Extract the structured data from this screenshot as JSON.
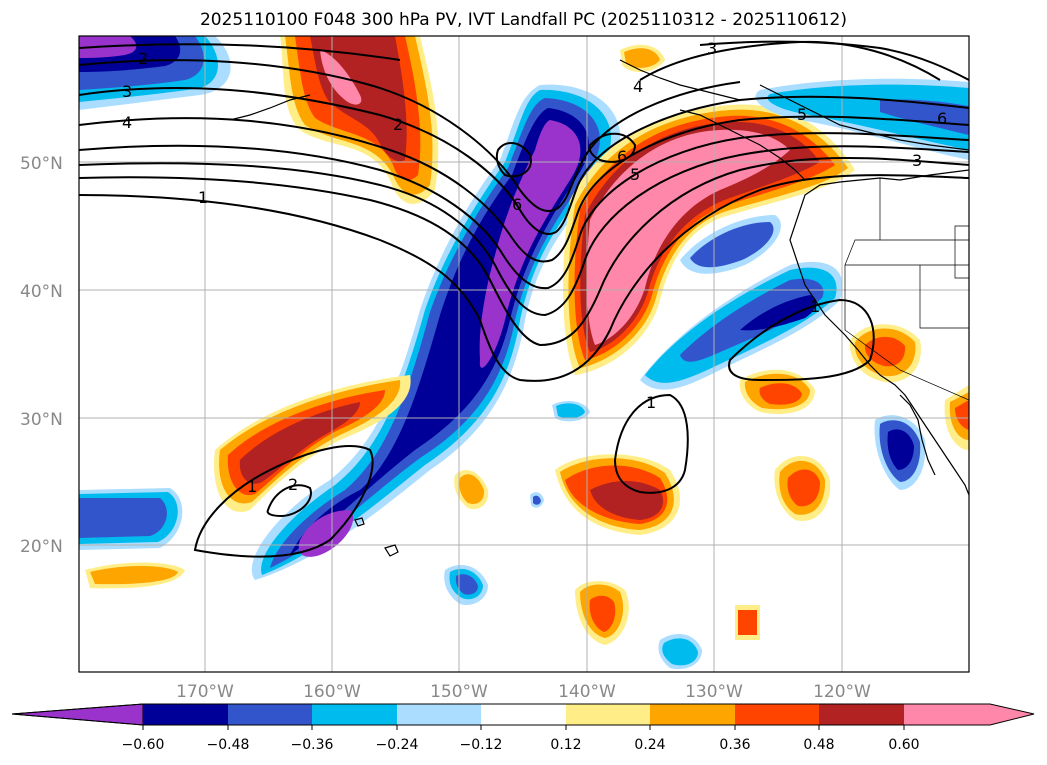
{
  "title": "2025110100 F048 300 hPa PV, IVT Landfall PC (2025110312 - 2025110612)",
  "lon_labels": [
    "170°W",
    "160°W",
    "150°W",
    "140°W",
    "130°W",
    "120°W"
  ],
  "lat_labels": [
    "50°N",
    "40°N",
    "30°N",
    "20°N"
  ],
  "colorbar": {
    "ticks": [
      "−0.60",
      "−0.48",
      "−0.36",
      "−0.24",
      "−0.12",
      "0.12",
      "0.24",
      "0.36",
      "0.48",
      "0.60"
    ],
    "colors": [
      "#9933cc",
      "#000099",
      "#3355cc",
      "#00bbee",
      "#aaddff",
      "#ffffff",
      "#ffee88",
      "#ffa500",
      "#ff4400",
      "#b22222",
      "#ff88aa"
    ]
  },
  "contour_labels": [
    "2",
    "3",
    "4",
    "1",
    "6",
    "6",
    "5",
    "3",
    "4",
    "5",
    "6",
    "3",
    "1",
    "1",
    "2",
    "1",
    "2"
  ],
  "colors": {
    "purple": "#9933cc",
    "navy": "#000099",
    "blue": "#3355cc",
    "cyan": "#00bbee",
    "lightblue": "#aaddff",
    "yellow": "#ffee88",
    "orange": "#ffa500",
    "redorange": "#ff4400",
    "firebrick": "#b22222",
    "pink": "#ff88aa"
  }
}
